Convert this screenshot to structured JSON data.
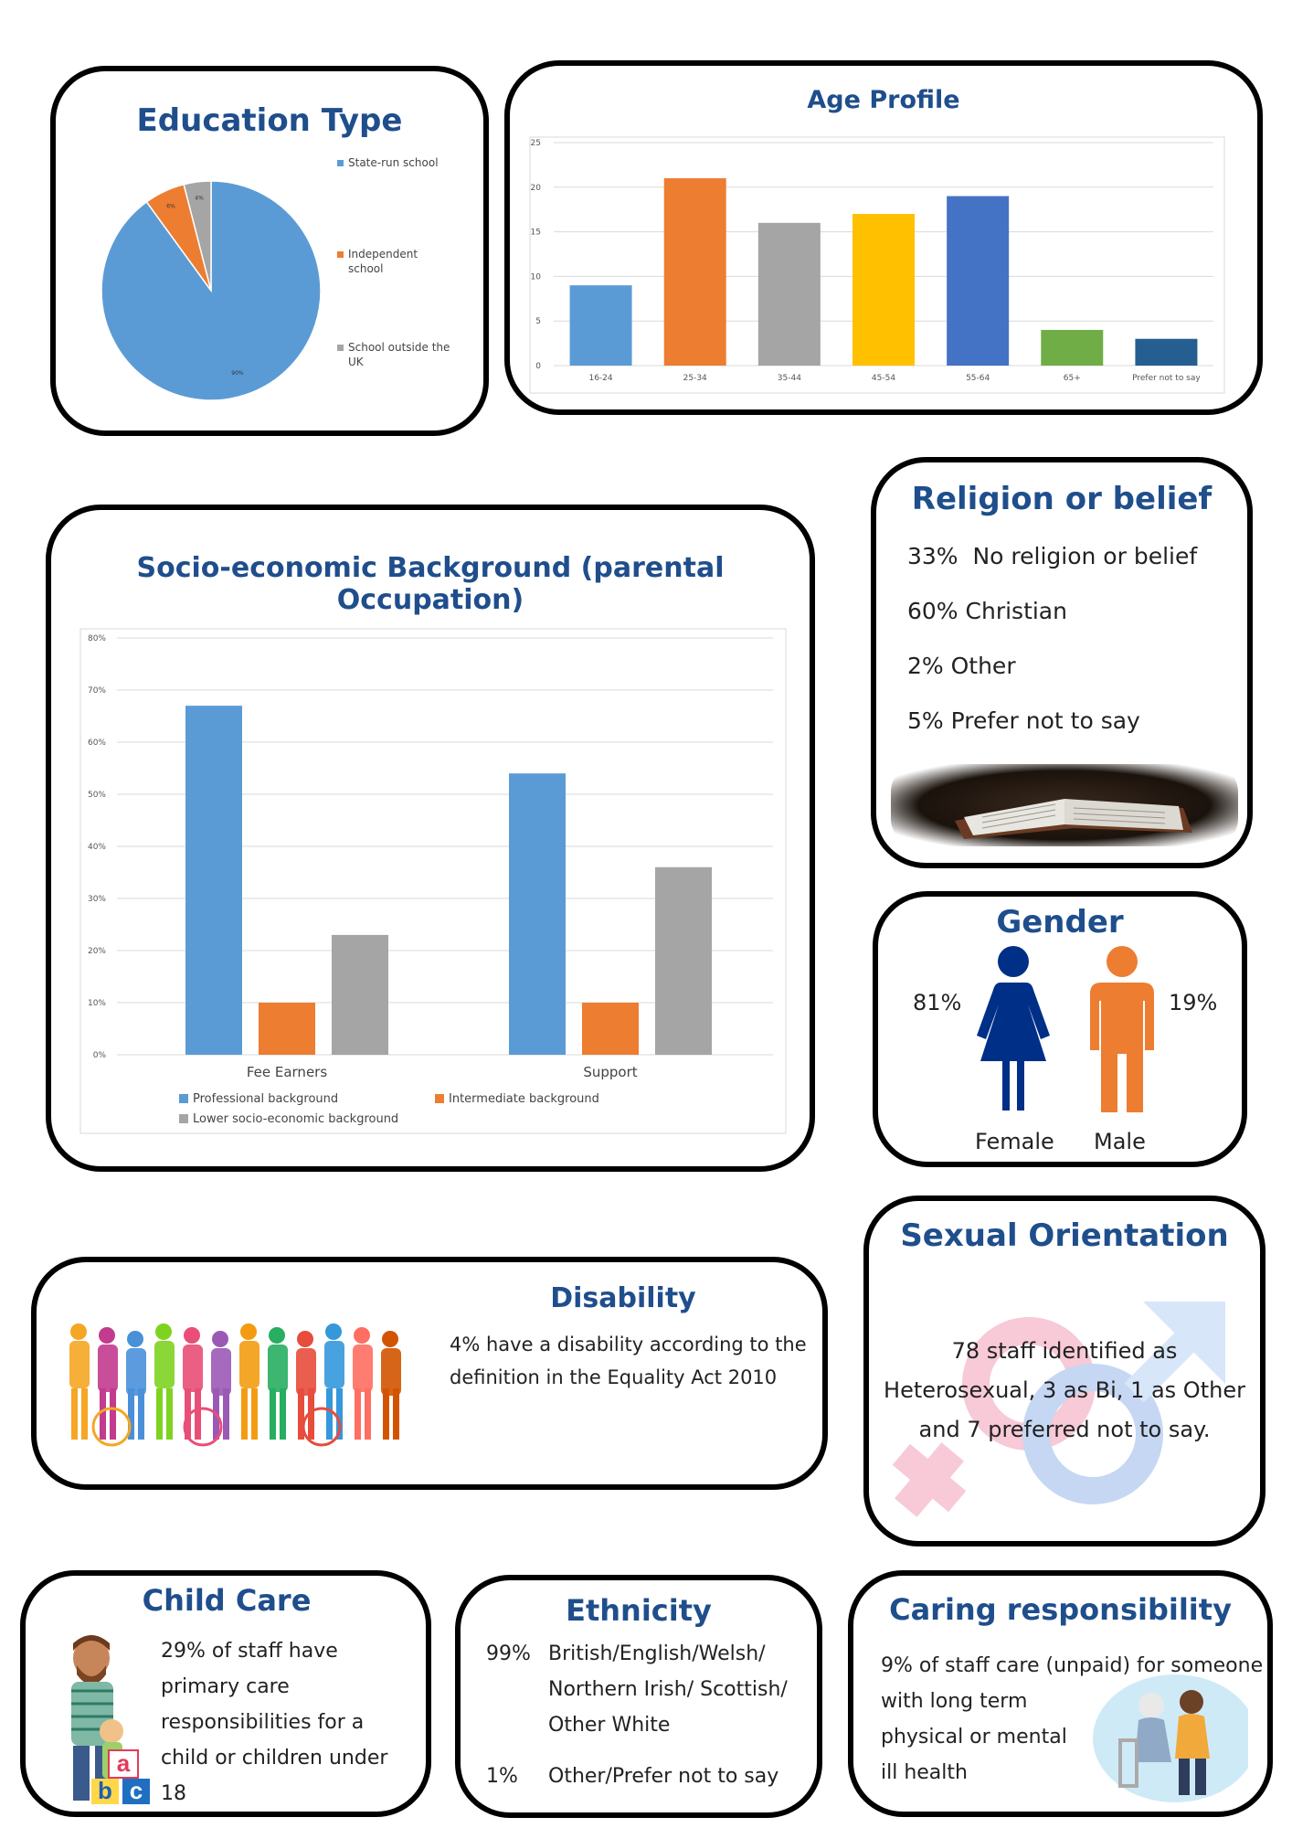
{
  "education": {
    "title": "Education Type",
    "legend": [
      "State-run school",
      "Independent school",
      "School outside the UK"
    ],
    "slice_labels": [
      "90%",
      "6%",
      "4%"
    ]
  },
  "age": {
    "title": "Age Profile"
  },
  "socio": {
    "title": "Socio-economic Background (parental Occupation)"
  },
  "religion": {
    "title": "Religion or belief",
    "lines": [
      "33%  No religion or belief",
      "60% Christian",
      "2% Other",
      "5% Prefer not to say"
    ]
  },
  "gender": {
    "title": "Gender",
    "female_pct": "81%",
    "male_pct": "19%",
    "female_label": "Female",
    "male_label": "Male"
  },
  "sexual_orientation": {
    "title": "Sexual Orientation",
    "lines": [
      "78 staff identified as",
      "Heterosexual, 3 as Bi, 1 as Other",
      "and 7 preferred not to say."
    ]
  },
  "disability": {
    "title": "Disability",
    "lines": [
      "4% have a disability according to the",
      "definition in the Equality Act 2010"
    ]
  },
  "child_care": {
    "title": "Child Care",
    "lines": [
      "29% of staff have",
      "primary care",
      "responsibilities for a",
      "child or children under",
      "18"
    ],
    "blocks": [
      "a",
      "b",
      "c"
    ]
  },
  "ethnicity": {
    "title": "Ethnicity",
    "rows": [
      {
        "pct": "99%",
        "lines": [
          "British/English/Welsh/",
          "Northern Irish/ Scottish/",
          "Other White"
        ]
      },
      {
        "pct": "1%",
        "lines": [
          "Other/Prefer not to say"
        ]
      }
    ]
  },
  "caring": {
    "title": "Caring responsibility",
    "lines": [
      "9% of staff care (unpaid) for someone",
      "with long term",
      "physical or mental",
      "ill health"
    ]
  },
  "colors": {
    "title": "#1f4e8c",
    "blue": "#5b9bd5",
    "orange": "#ed7d31",
    "gray": "#a5a5a5",
    "gold": "#ffc000",
    "royal": "#4472c4",
    "green": "#70ad47",
    "navy": "#255e91"
  },
  "chart_data": [
    {
      "id": "education",
      "type": "pie",
      "title": "Education Type",
      "labels": [
        "State-run school",
        "Independent school",
        "School outside the UK"
      ],
      "values": [
        90,
        6,
        4
      ],
      "colors": [
        "#5b9bd5",
        "#ed7d31",
        "#a5a5a5"
      ],
      "legend": "right"
    },
    {
      "id": "age",
      "type": "bar",
      "title": "Age Profile",
      "categories": [
        "16-24",
        "25-34",
        "35-44",
        "45-54",
        "55-64",
        "65+",
        "Prefer not to say"
      ],
      "values": [
        9,
        21,
        16,
        17,
        19,
        4,
        3
      ],
      "colors": [
        "#5b9bd5",
        "#ed7d31",
        "#a5a5a5",
        "#ffc000",
        "#4472c4",
        "#70ad47",
        "#255e91"
      ],
      "ylim": [
        0,
        25
      ],
      "yticks": [
        0,
        5,
        10,
        15,
        20,
        25
      ],
      "grid": true
    },
    {
      "id": "socio",
      "type": "bar",
      "title": "Socio-economic Background (parental Occupation)",
      "categories": [
        "Fee Earners",
        "Support"
      ],
      "series": [
        {
          "name": "Professional background",
          "values": [
            67,
            54
          ],
          "color": "#5b9bd5"
        },
        {
          "name": "Intermediate background",
          "values": [
            10,
            10
          ],
          "color": "#ed7d31"
        },
        {
          "name": "Lower socio-economic background",
          "values": [
            23,
            36
          ],
          "color": "#a5a5a5"
        }
      ],
      "ylim": [
        0,
        80
      ],
      "yticks": [
        "0%",
        "10%",
        "20%",
        "30%",
        "40%",
        "50%",
        "60%",
        "70%",
        "80%"
      ],
      "grid": true,
      "legend": "bottom"
    }
  ]
}
